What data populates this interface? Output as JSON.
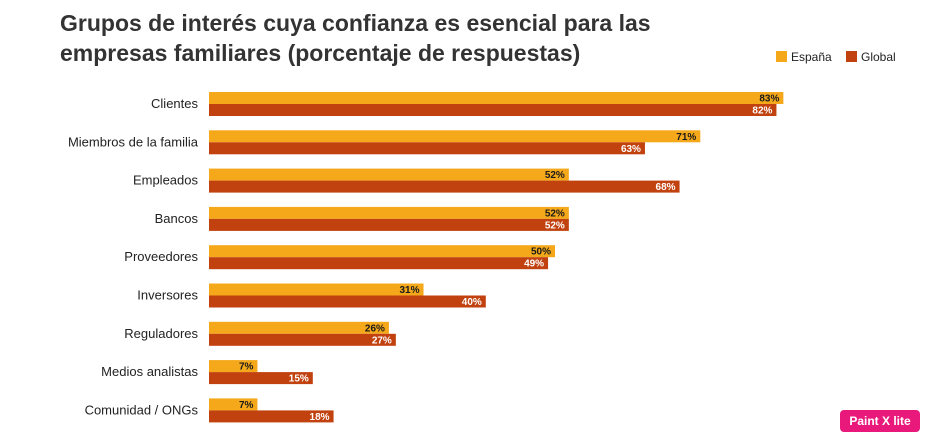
{
  "chart_data": {
    "type": "bar",
    "orientation": "horizontal",
    "title": "Grupos de interés cuya confianza es esencial para las empresas familiares (porcentaje de respuestas)",
    "categories": [
      "Clientes",
      "Miembros  de la familia",
      "Empleados",
      "Bancos",
      "Proveedores",
      "Inversores",
      "Reguladores",
      "Medios analistas",
      "Comunidad  / ONGs"
    ],
    "series": [
      {
        "name": "España",
        "values": [
          83,
          71,
          52,
          52,
          50,
          31,
          26,
          7,
          7
        ],
        "color": "#f4a81a"
      },
      {
        "name": "Global",
        "values": [
          82,
          63,
          68,
          52,
          49,
          40,
          27,
          15,
          18
        ],
        "color": "#c1410f"
      }
    ],
    "xlim": [
      0,
      100
    ],
    "value_suffix": "%",
    "legend_position": "top-right",
    "grid": false
  },
  "watermark": {
    "text": "Paint X lite",
    "color": "#e8197a"
  }
}
